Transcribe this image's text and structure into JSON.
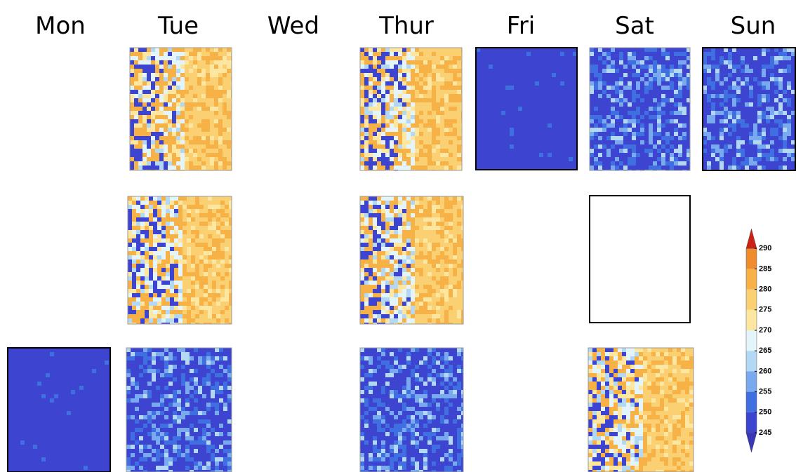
{
  "columns": [
    "Mon",
    "Tue",
    "Wed",
    "Thur",
    "Fri",
    "Sat",
    "Sun"
  ],
  "colorbar": {
    "labels": [
      245,
      250,
      255,
      260,
      265,
      270,
      275,
      280,
      285,
      290
    ],
    "colors": [
      "#3a36b8",
      "#3c44d0",
      "#3f6fe0",
      "#79a9ee",
      "#b3d8f4",
      "#e3f5fb",
      "#fde7a0",
      "#fbd072",
      "#f6b247",
      "#ef8d2e",
      "#e45d1e",
      "#cc2216"
    ]
  }
}
